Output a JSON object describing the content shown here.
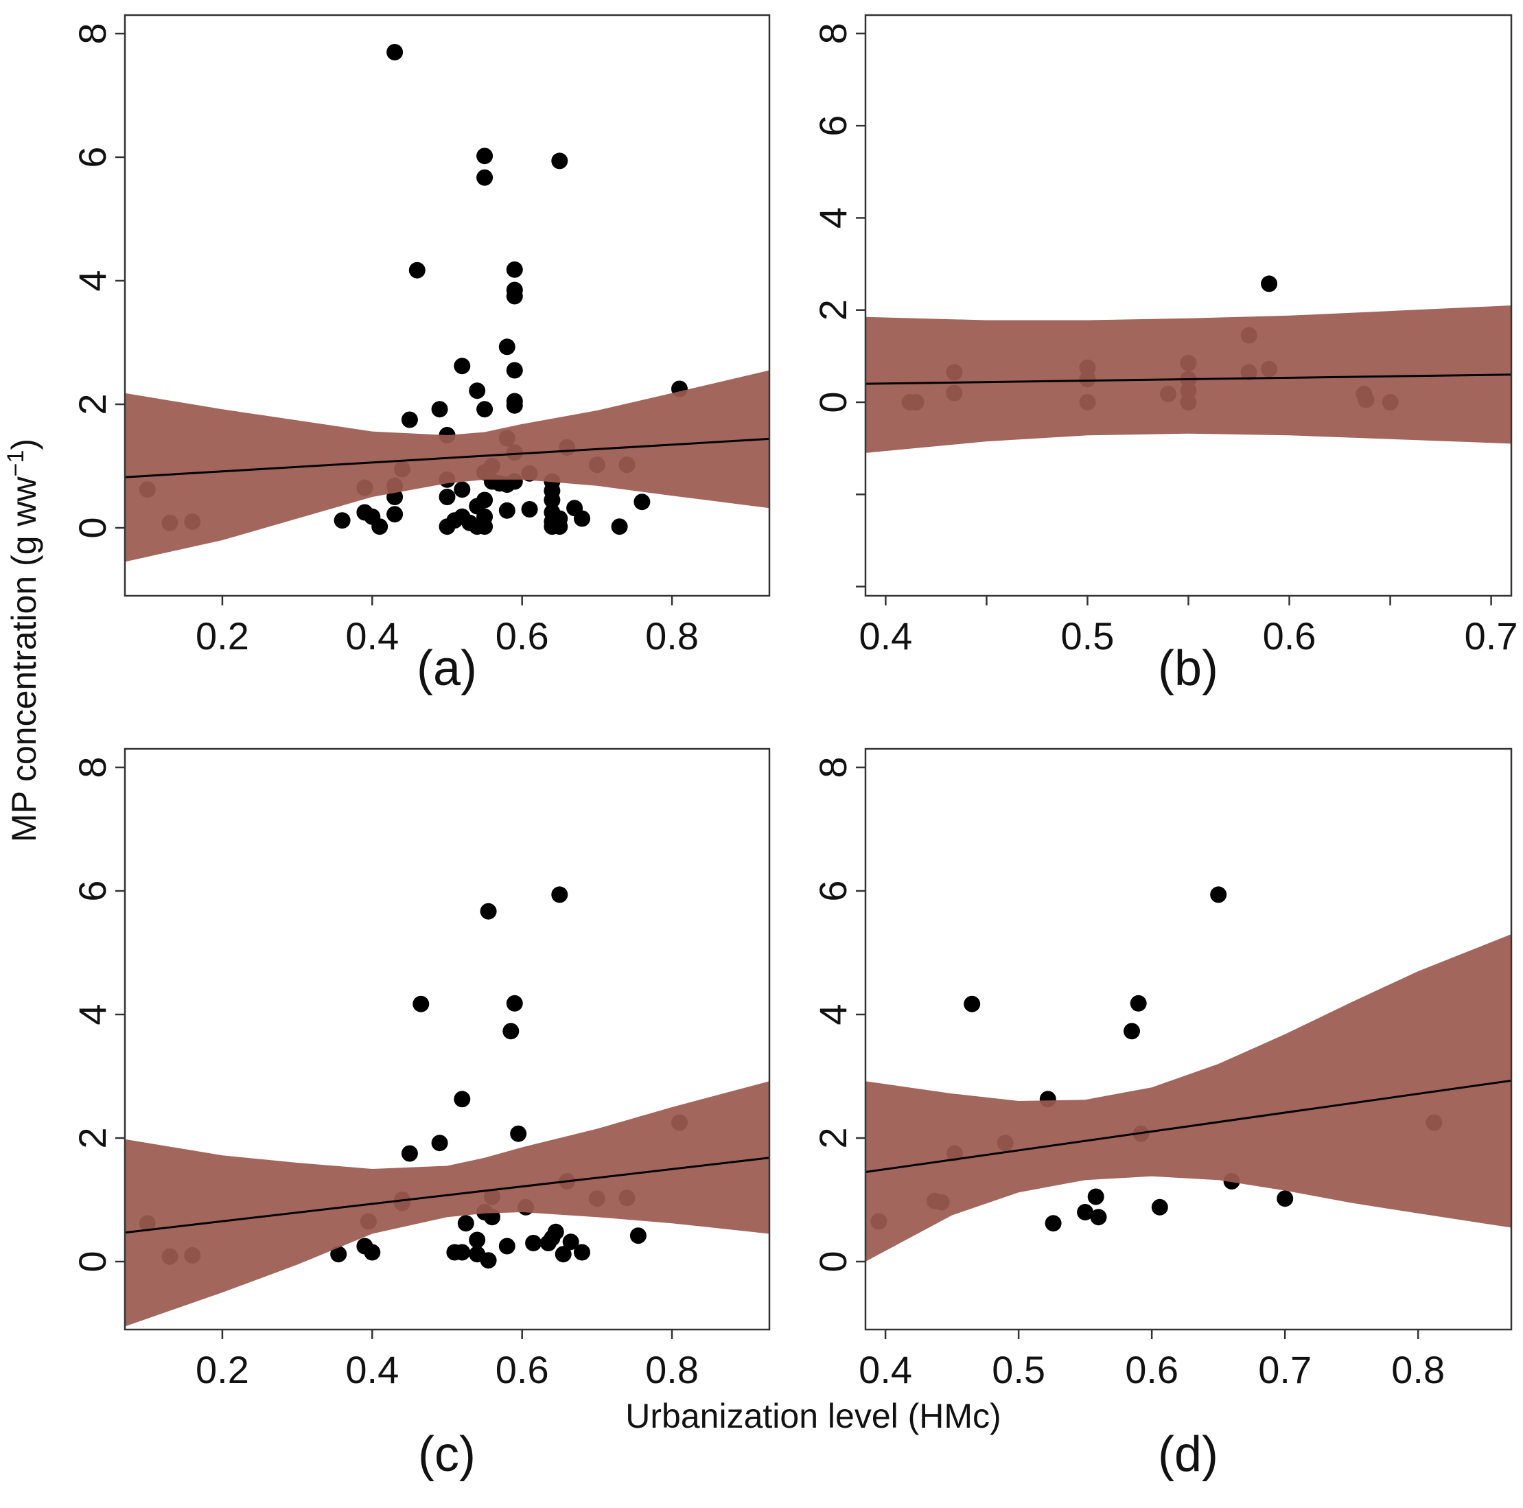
{
  "figure": {
    "ylabel": "MP concentration (g ww",
    "ylabel_sup": "−1",
    "ylabel_end": ")",
    "xlabel": "Urbanization level (HMc)"
  },
  "colors": {
    "band": "#9c5a50",
    "point": "#000000",
    "line": "#000000"
  },
  "chart_data": [
    {
      "type": "scatter",
      "panel_label": "(a)",
      "xlim": [
        0.07,
        0.93
      ],
      "ylim": [
        -1.1,
        8.3
      ],
      "xticks": [
        0.2,
        0.4,
        0.6,
        0.8
      ],
      "xtick_labels": [
        "0.2",
        "0.4",
        "0.6",
        "0.8"
      ],
      "yticks": [
        0,
        2,
        4,
        6,
        8
      ],
      "ytick_labels": [
        "0",
        "2",
        "4",
        "6",
        "8"
      ],
      "fit": {
        "x": [
          0.07,
          0.93
        ],
        "y": [
          0.82,
          1.44
        ]
      },
      "confidence_band": {
        "x": [
          0.07,
          0.2,
          0.3,
          0.4,
          0.5,
          0.55,
          0.6,
          0.7,
          0.8,
          0.93
        ],
        "lower": [
          -0.55,
          -0.2,
          0.15,
          0.5,
          0.72,
          0.78,
          0.78,
          0.68,
          0.52,
          0.32
        ],
        "upper": [
          2.18,
          1.92,
          1.74,
          1.56,
          1.5,
          1.55,
          1.68,
          1.9,
          2.18,
          2.55
        ]
      },
      "points": [
        [
          0.1,
          0.62
        ],
        [
          0.13,
          0.08
        ],
        [
          0.16,
          0.1
        ],
        [
          0.36,
          0.12
        ],
        [
          0.39,
          0.25
        ],
        [
          0.4,
          0.18
        ],
        [
          0.41,
          0.02
        ],
        [
          0.39,
          0.65
        ],
        [
          0.43,
          0.22
        ],
        [
          0.43,
          0.5
        ],
        [
          0.43,
          0.68
        ],
        [
          0.44,
          0.95
        ],
        [
          0.43,
          7.7
        ],
        [
          0.45,
          1.75
        ],
        [
          0.46,
          4.17
        ],
        [
          0.49,
          1.92
        ],
        [
          0.5,
          1.5
        ],
        [
          0.5,
          0.78
        ],
        [
          0.5,
          0.5
        ],
        [
          0.5,
          0.02
        ],
        [
          0.51,
          0.12
        ],
        [
          0.52,
          0.18
        ],
        [
          0.52,
          0.62
        ],
        [
          0.52,
          2.62
        ],
        [
          0.53,
          0.08
        ],
        [
          0.54,
          2.22
        ],
        [
          0.54,
          0.35
        ],
        [
          0.54,
          0.02
        ],
        [
          0.55,
          6.02
        ],
        [
          0.55,
          5.67
        ],
        [
          0.55,
          1.92
        ],
        [
          0.55,
          0.9
        ],
        [
          0.55,
          0.45
        ],
        [
          0.55,
          0.18
        ],
        [
          0.55,
          0.02
        ],
        [
          0.56,
          1.0
        ],
        [
          0.56,
          0.75
        ],
        [
          0.57,
          0.72
        ],
        [
          0.58,
          2.93
        ],
        [
          0.58,
          1.45
        ],
        [
          0.58,
          0.7
        ],
        [
          0.58,
          0.28
        ],
        [
          0.59,
          4.18
        ],
        [
          0.59,
          3.85
        ],
        [
          0.59,
          3.75
        ],
        [
          0.59,
          2.55
        ],
        [
          0.59,
          2.05
        ],
        [
          0.59,
          1.98
        ],
        [
          0.59,
          1.22
        ],
        [
          0.59,
          0.75
        ],
        [
          0.61,
          0.88
        ],
        [
          0.61,
          0.3
        ],
        [
          0.64,
          0.75
        ],
        [
          0.64,
          0.6
        ],
        [
          0.64,
          0.45
        ],
        [
          0.64,
          0.25
        ],
        [
          0.64,
          0.1
        ],
        [
          0.64,
          0.02
        ],
        [
          0.65,
          5.94
        ],
        [
          0.65,
          0.15
        ],
        [
          0.65,
          0.02
        ],
        [
          0.66,
          1.3
        ],
        [
          0.67,
          0.32
        ],
        [
          0.68,
          0.15
        ],
        [
          0.7,
          1.02
        ],
        [
          0.73,
          0.02
        ],
        [
          0.74,
          1.02
        ],
        [
          0.76,
          0.42
        ],
        [
          0.81,
          2.25
        ]
      ]
    },
    {
      "type": "scatter",
      "panel_label": "(b)",
      "xlim": [
        0.39,
        0.71
      ],
      "ylim": [
        -4.2,
        8.4
      ],
      "xticks": [
        0.4,
        0.5,
        0.6,
        0.7
      ],
      "xtick_labels": [
        "0.4",
        "0.5",
        "0.6",
        "0.7"
      ],
      "minor_xticks": [
        0.45,
        0.55,
        0.65
      ],
      "yticks": [
        0,
        2,
        4,
        6,
        8
      ],
      "ytick_labels": [
        "0",
        "2",
        "4",
        "6",
        "8"
      ],
      "minor_yticks": [
        -2,
        -4
      ],
      "fit": {
        "x": [
          0.39,
          0.71
        ],
        "y": [
          0.4,
          0.6
        ]
      },
      "confidence_band": {
        "x": [
          0.39,
          0.45,
          0.5,
          0.55,
          0.6,
          0.65,
          0.71
        ],
        "lower": [
          -1.1,
          -0.85,
          -0.72,
          -0.68,
          -0.72,
          -0.8,
          -0.9
        ],
        "upper": [
          1.85,
          1.78,
          1.78,
          1.82,
          1.88,
          1.98,
          2.1
        ]
      },
      "points": [
        [
          0.412,
          0.0
        ],
        [
          0.415,
          0.0
        ],
        [
          0.434,
          0.65
        ],
        [
          0.434,
          0.2
        ],
        [
          0.5,
          0.75
        ],
        [
          0.5,
          0.5
        ],
        [
          0.5,
          0.0
        ],
        [
          0.54,
          0.18
        ],
        [
          0.55,
          0.85
        ],
        [
          0.55,
          0.5
        ],
        [
          0.55,
          0.25
        ],
        [
          0.55,
          0.0
        ],
        [
          0.58,
          1.45
        ],
        [
          0.58,
          0.65
        ],
        [
          0.59,
          2.57
        ],
        [
          0.59,
          0.72
        ],
        [
          0.637,
          0.18
        ],
        [
          0.638,
          0.05
        ],
        [
          0.65,
          0.0
        ]
      ]
    },
    {
      "type": "scatter",
      "panel_label": "(c)",
      "xlim": [
        0.07,
        0.93
      ],
      "ylim": [
        -1.1,
        8.3
      ],
      "xticks": [
        0.2,
        0.4,
        0.6,
        0.8
      ],
      "xtick_labels": [
        "0.2",
        "0.4",
        "0.6",
        "0.8"
      ],
      "yticks": [
        0,
        2,
        4,
        6,
        8
      ],
      "ytick_labels": [
        "0",
        "2",
        "4",
        "6",
        "8"
      ],
      "fit": {
        "x": [
          0.07,
          0.93
        ],
        "y": [
          0.47,
          1.68
        ]
      },
      "confidence_band": {
        "x": [
          0.07,
          0.2,
          0.3,
          0.4,
          0.5,
          0.55,
          0.6,
          0.7,
          0.8,
          0.93
        ],
        "lower": [
          -1.05,
          -0.5,
          -0.05,
          0.45,
          0.72,
          0.78,
          0.8,
          0.72,
          0.62,
          0.45
        ],
        "upper": [
          1.98,
          1.72,
          1.6,
          1.5,
          1.55,
          1.68,
          1.85,
          2.15,
          2.5,
          2.92
        ]
      },
      "points": [
        [
          0.1,
          0.62
        ],
        [
          0.13,
          0.08
        ],
        [
          0.16,
          0.1
        ],
        [
          0.355,
          0.12
        ],
        [
          0.39,
          0.25
        ],
        [
          0.395,
          0.65
        ],
        [
          0.4,
          0.15
        ],
        [
          0.44,
          1.0
        ],
        [
          0.44,
          0.95
        ],
        [
          0.45,
          1.75
        ],
        [
          0.465,
          4.17
        ],
        [
          0.49,
          1.92
        ],
        [
          0.51,
          0.15
        ],
        [
          0.52,
          0.15
        ],
        [
          0.52,
          2.63
        ],
        [
          0.525,
          0.62
        ],
        [
          0.54,
          0.35
        ],
        [
          0.54,
          0.12
        ],
        [
          0.55,
          0.8
        ],
        [
          0.555,
          5.67
        ],
        [
          0.555,
          0.02
        ],
        [
          0.56,
          1.05
        ],
        [
          0.56,
          0.72
        ],
        [
          0.58,
          0.25
        ],
        [
          0.585,
          3.73
        ],
        [
          0.59,
          4.18
        ],
        [
          0.595,
          2.07
        ],
        [
          0.605,
          0.88
        ],
        [
          0.615,
          0.3
        ],
        [
          0.635,
          0.3
        ],
        [
          0.64,
          0.38
        ],
        [
          0.645,
          0.48
        ],
        [
          0.65,
          5.94
        ],
        [
          0.655,
          0.12
        ],
        [
          0.66,
          1.3
        ],
        [
          0.665,
          0.32
        ],
        [
          0.68,
          0.15
        ],
        [
          0.7,
          1.02
        ],
        [
          0.74,
          1.03
        ],
        [
          0.755,
          0.42
        ],
        [
          0.81,
          2.25
        ]
      ]
    },
    {
      "type": "scatter",
      "panel_label": "(d)",
      "xlim": [
        0.385,
        0.87
      ],
      "ylim": [
        -1.1,
        8.3
      ],
      "xticks": [
        0.4,
        0.5,
        0.6,
        0.7,
        0.8
      ],
      "xtick_labels": [
        "0.4",
        "0.5",
        "0.6",
        "0.7",
        "0.8"
      ],
      "yticks": [
        0,
        2,
        4,
        6,
        8
      ],
      "ytick_labels": [
        "0",
        "2",
        "4",
        "6",
        "8"
      ],
      "fit": {
        "x": [
          0.385,
          0.87
        ],
        "y": [
          1.45,
          2.93
        ]
      },
      "confidence_band": {
        "x": [
          0.385,
          0.45,
          0.5,
          0.55,
          0.6,
          0.65,
          0.7,
          0.75,
          0.8,
          0.87
        ],
        "lower": [
          0.0,
          0.75,
          1.12,
          1.32,
          1.38,
          1.32,
          1.15,
          0.95,
          0.78,
          0.55
        ],
        "upper": [
          2.92,
          2.72,
          2.6,
          2.62,
          2.82,
          3.2,
          3.68,
          4.2,
          4.7,
          5.3
        ]
      },
      "points": [
        [
          0.395,
          0.65
        ],
        [
          0.437,
          0.98
        ],
        [
          0.442,
          0.96
        ],
        [
          0.452,
          1.75
        ],
        [
          0.465,
          4.17
        ],
        [
          0.49,
          1.92
        ],
        [
          0.522,
          2.63
        ],
        [
          0.526,
          0.62
        ],
        [
          0.55,
          0.8
        ],
        [
          0.558,
          1.05
        ],
        [
          0.56,
          0.72
        ],
        [
          0.585,
          3.73
        ],
        [
          0.59,
          4.18
        ],
        [
          0.592,
          2.07
        ],
        [
          0.606,
          0.88
        ],
        [
          0.65,
          5.94
        ],
        [
          0.66,
          1.3
        ],
        [
          0.7,
          1.02
        ],
        [
          0.812,
          2.25
        ]
      ]
    }
  ]
}
